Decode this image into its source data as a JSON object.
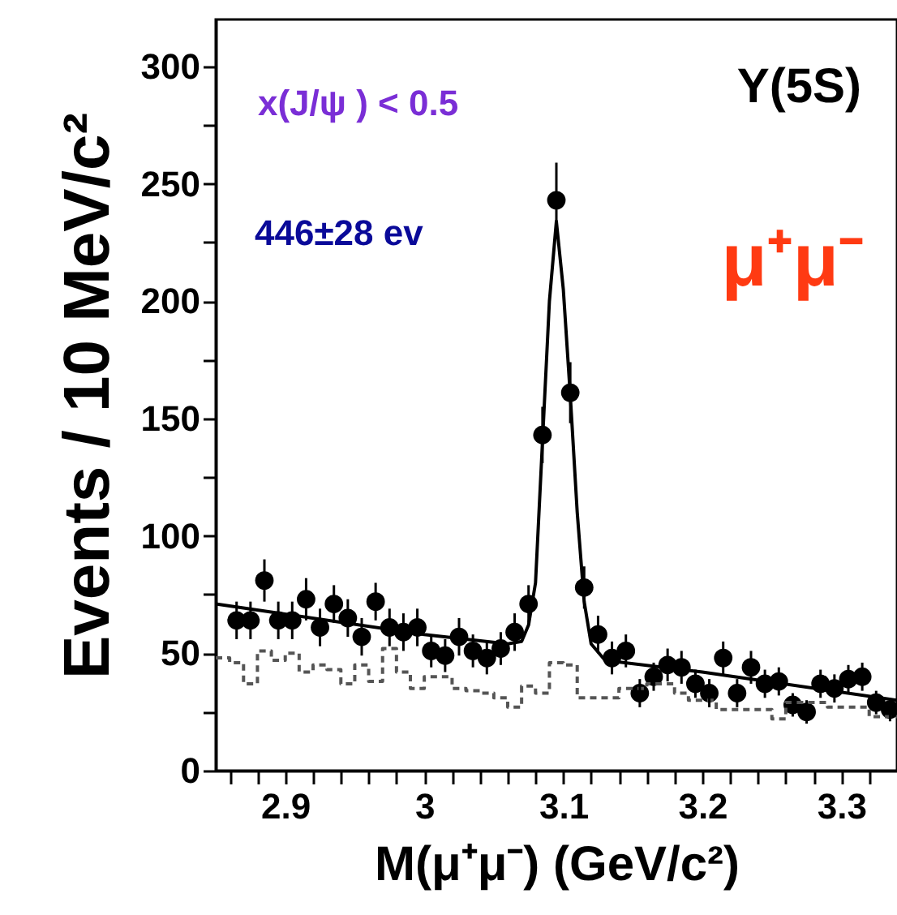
{
  "chart_data": {
    "type": "scatter",
    "xlabel": "M(μ⁺μ⁻)    (GeV/c²)",
    "ylabel": "Events / 10 MeV/c²",
    "annotations": [
      "x(J/ψ ) < 0.5",
      "446±28 ev",
      "Υ(5S)",
      "μ⁺μ⁻"
    ],
    "xlim": [
      2.85,
      3.34
    ],
    "ylim": [
      0,
      320
    ],
    "xticks": [
      {
        "value": 2.86,
        "label": null
      },
      {
        "value": 2.88,
        "label": null
      },
      2.9,
      {
        "value": 2.92,
        "label": null
      },
      {
        "value": 2.94,
        "label": null
      },
      {
        "value": 2.96,
        "label": null
      },
      {
        "value": 2.98,
        "label": null
      },
      3,
      {
        "value": 3.02,
        "label": null
      },
      {
        "value": 3.04,
        "label": null
      },
      {
        "value": 3.06,
        "label": null
      },
      {
        "value": 3.08,
        "label": null
      },
      3.1,
      {
        "value": 3.12,
        "label": null
      },
      {
        "value": 3.14,
        "label": null
      },
      {
        "value": 3.16,
        "label": null
      },
      {
        "value": 3.18,
        "label": null
      },
      3.2,
      {
        "value": 3.22,
        "label": null
      },
      {
        "value": 3.24,
        "label": null
      },
      {
        "value": 3.26,
        "label": null
      },
      {
        "value": 3.28,
        "label": null
      },
      3.3,
      {
        "value": 3.32,
        "label": null
      }
    ],
    "yticks": [
      0,
      {
        "value": 25,
        "label": null
      },
      50,
      {
        "value": 75,
        "label": null
      },
      100,
      {
        "value": 125,
        "label": null
      },
      150,
      {
        "value": 175,
        "label": null
      },
      200,
      {
        "value": 225,
        "label": null
      },
      250,
      {
        "value": 275,
        "label": null
      },
      300
    ],
    "series": [
      {
        "color": "#000000",
        "marker": "circle",
        "x": [
          2.865,
          2.875,
          2.885,
          2.895,
          2.905,
          2.915,
          2.925,
          2.935,
          2.945,
          2.955,
          2.965,
          2.975,
          2.985,
          2.995,
          3.005,
          3.015,
          3.025,
          3.035,
          3.045,
          3.055,
          3.065,
          3.075,
          3.085,
          3.095,
          3.105,
          3.115,
          3.125,
          3.135,
          3.145,
          3.155,
          3.165,
          3.175,
          3.185,
          3.195,
          3.205,
          3.215,
          3.225,
          3.235,
          3.245,
          3.255,
          3.265,
          3.275,
          3.285,
          3.295,
          3.305,
          3.315,
          3.325,
          3.335
        ],
        "values": [
          64,
          64,
          81,
          64,
          64,
          73,
          61,
          71,
          65,
          57,
          72,
          61,
          59,
          61,
          51,
          49,
          57,
          51,
          48,
          52,
          59,
          71,
          143,
          243,
          161,
          78,
          58,
          48,
          51,
          33,
          40,
          45,
          44,
          37,
          33,
          48,
          33,
          44,
          37,
          38,
          28,
          25,
          37,
          35,
          39,
          40,
          29,
          26
        ],
        "errors": [
          8,
          8,
          9,
          8,
          8,
          9,
          8,
          8,
          8,
          8,
          8,
          8,
          8,
          8,
          7,
          7,
          8,
          7,
          7,
          7,
          8,
          8,
          12,
          16,
          13,
          9,
          8,
          7,
          7,
          6,
          6,
          7,
          7,
          6,
          6,
          7,
          6,
          7,
          6,
          6,
          5,
          5,
          6,
          6,
          6,
          6,
          5,
          5
        ]
      },
      {
        "type": "line",
        "color": "#000000",
        "line_style": "solid",
        "marker": "none",
        "x": [
          2.85,
          3.0,
          3.06,
          3.07,
          3.075,
          3.08,
          3.085,
          3.09,
          3.095,
          3.1,
          3.105,
          3.11,
          3.115,
          3.12,
          3.13,
          3.2,
          3.34
        ],
        "values": [
          71,
          58,
          54,
          55,
          62,
          80,
          140,
          200,
          234,
          205,
          160,
          110,
          72,
          54,
          47,
          42,
          30
        ]
      },
      {
        "type": "step",
        "color": "#555555",
        "line_style": "dashed",
        "marker": "none",
        "x": [
          2.85,
          2.86,
          2.87,
          2.88,
          2.89,
          2.9,
          2.91,
          2.92,
          2.93,
          2.94,
          2.95,
          2.96,
          2.97,
          2.98,
          2.99,
          3.0,
          3.01,
          3.02,
          3.03,
          3.04,
          3.05,
          3.06,
          3.07,
          3.08,
          3.09,
          3.1,
          3.11,
          3.12,
          3.13,
          3.14,
          3.15,
          3.16,
          3.17,
          3.18,
          3.19,
          3.2,
          3.21,
          3.22,
          3.23,
          3.24,
          3.25,
          3.26,
          3.27,
          3.28,
          3.29,
          3.3,
          3.31,
          3.32,
          3.33,
          3.34
        ],
        "values": [
          48,
          46,
          37,
          51,
          47,
          50,
          42,
          45,
          43,
          37,
          45,
          38,
          52,
          42,
          35,
          40,
          40,
          35,
          34,
          33,
          31,
          27,
          36,
          33,
          46,
          45,
          31,
          31,
          31,
          35,
          35,
          37,
          37,
          33,
          30,
          30,
          26,
          26,
          26,
          26,
          22,
          29,
          29,
          29,
          27,
          27,
          27,
          23,
          23,
          23
        ]
      }
    ]
  }
}
